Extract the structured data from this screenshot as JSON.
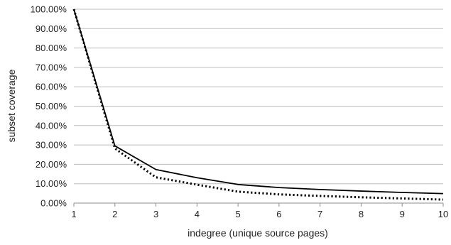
{
  "chart_data": {
    "type": "line",
    "title": "",
    "xlabel": "indegree (unique source pages)",
    "ylabel": "subset coverage",
    "x": [
      1,
      2,
      3,
      4,
      5,
      6,
      7,
      8,
      9,
      10
    ],
    "xlim": [
      1,
      10
    ],
    "ylim": [
      0,
      100
    ],
    "y_ticks": [
      "0.00%",
      "10.00%",
      "20.00%",
      "30.00%",
      "40.00%",
      "50.00%",
      "60.00%",
      "70.00%",
      "80.00%",
      "90.00%",
      "100.00%"
    ],
    "x_ticks": [
      "1",
      "2",
      "3",
      "4",
      "5",
      "6",
      "7",
      "8",
      "9",
      "10"
    ],
    "grid": "horizontal",
    "legend": "none",
    "series": [
      {
        "style": "solid",
        "color": "#000000",
        "values": [
          100,
          29.5,
          17.3,
          13.1,
          9.6,
          8.0,
          7.0,
          6.2,
          5.5,
          4.9
        ]
      },
      {
        "style": "dotted",
        "color": "#000000",
        "values": [
          100,
          28.2,
          13.3,
          9.5,
          5.9,
          4.5,
          3.7,
          3.0,
          2.4,
          1.8
        ]
      }
    ]
  }
}
